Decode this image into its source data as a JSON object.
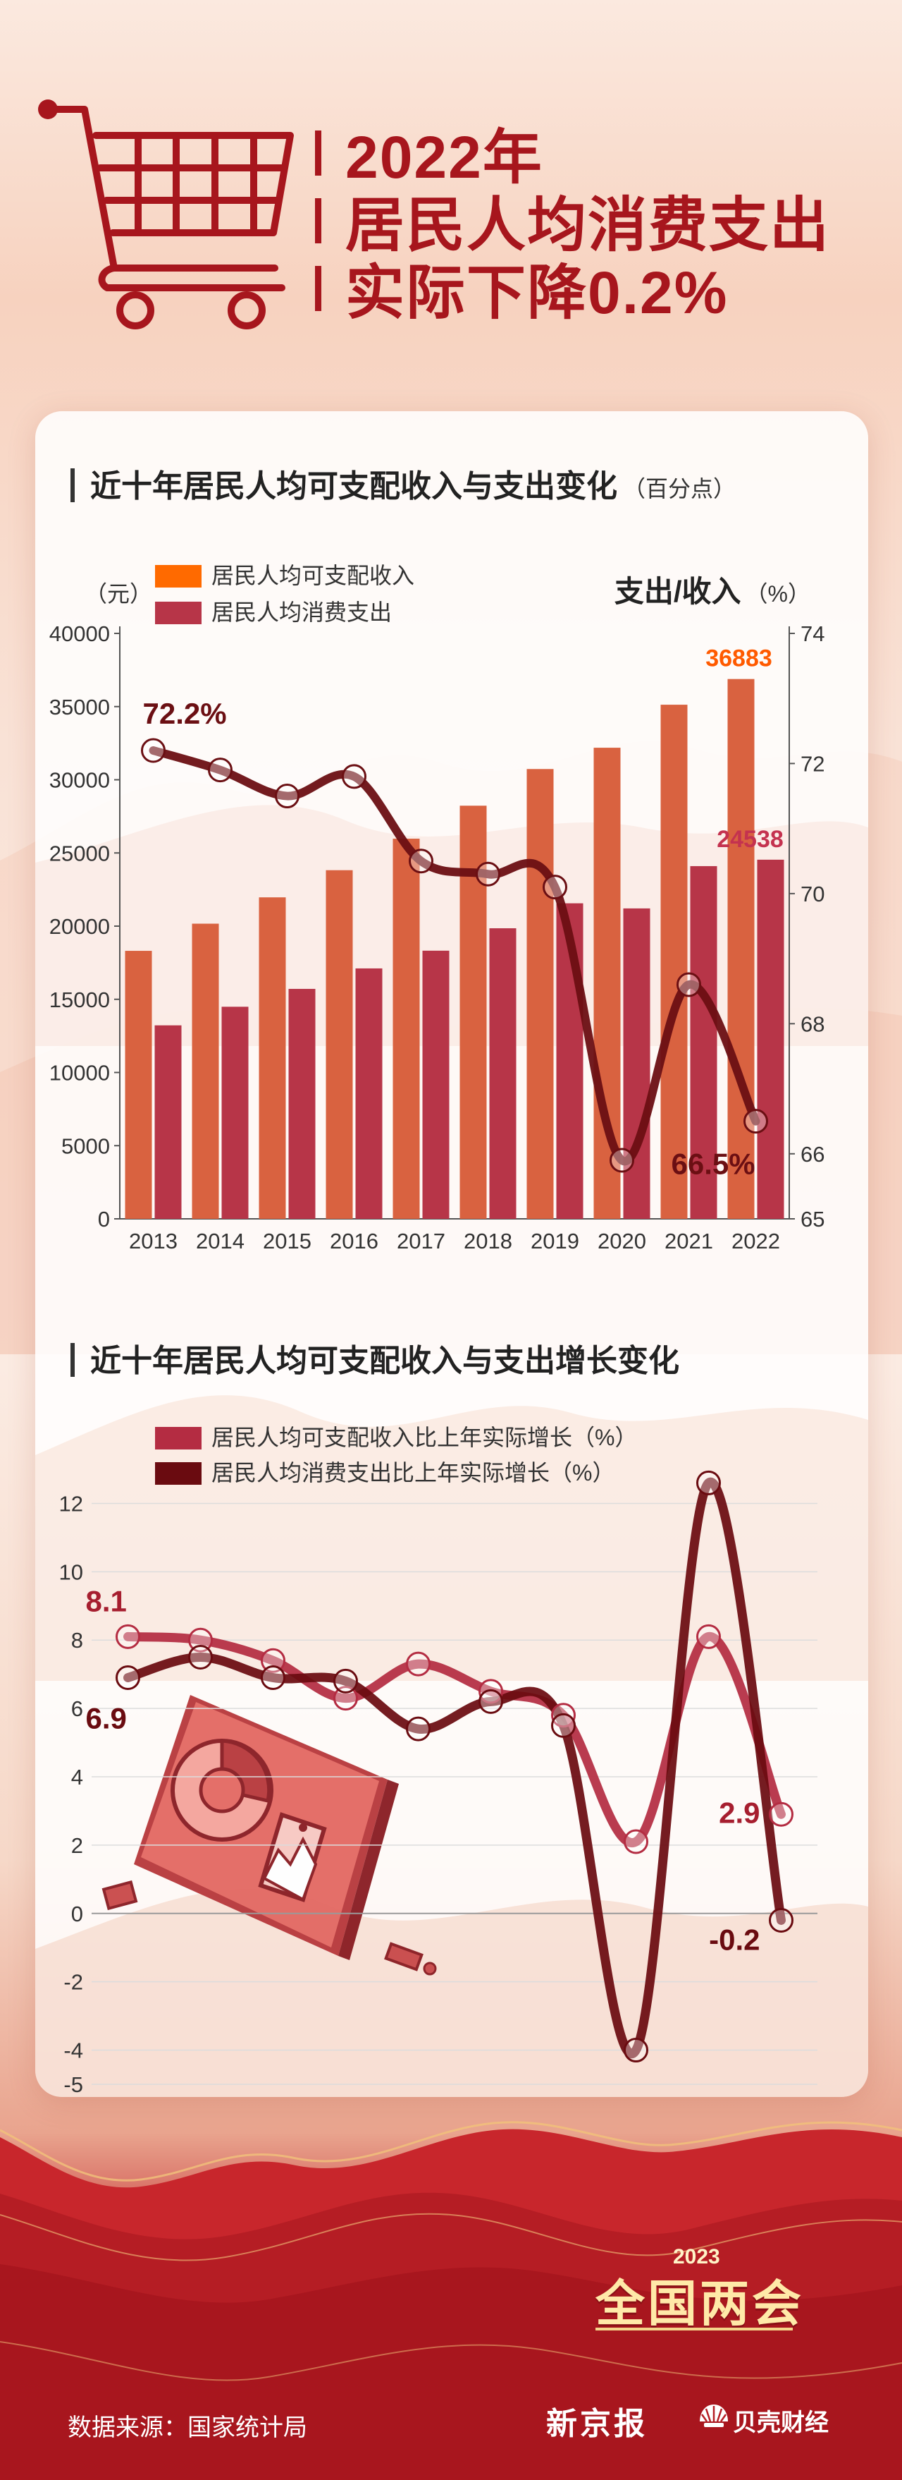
{
  "header": {
    "title_lines": [
      "2022年",
      "居民人均消费支出",
      "实际下降0.2%"
    ]
  },
  "chart1": {
    "section_title": "近十年居民人均可支配收入与支出变化",
    "section_title_unit": "（百分点）",
    "left_unit": "（元）",
    "right_axis_title": "支出/收入",
    "right_unit": "（%）"
  },
  "chart2": {
    "section_title": "近十年居民人均可支配收入与支出增长变化"
  },
  "footer": {
    "source": "数据来源：国家统计局",
    "npc_year": "2023",
    "npc_title": "全国两会",
    "logo_xjb": "新京报",
    "logo_bk": "贝壳财经"
  },
  "colors": {
    "title_red": "#a7161d",
    "income_bar": "#d96240",
    "expense_bar": "#b73548",
    "ratio_line": "#6b0f13",
    "legend_income": "#ff6a00",
    "growth_income_line": "#b42c42",
    "growth_expense_line": "#6a0b10"
  },
  "icons": [
    "shopping-cart-icon",
    "tablet-chart-illustration-icon",
    "shell-logo-icon"
  ],
  "chart_data": [
    {
      "type": "bar",
      "title": "近十年居民人均可支配收入与支出变化（百分点）",
      "categories": [
        "2013",
        "2014",
        "2015",
        "2016",
        "2017",
        "2018",
        "2019",
        "2020",
        "2021",
        "2022"
      ],
      "y_left_label": "（元）",
      "y_left_ticks": [
        "0",
        "5000",
        "10000",
        "15000",
        "20000",
        "25000",
        "30000",
        "35000",
        "40000"
      ],
      "ylim_left": [
        0,
        40000
      ],
      "y_right_label": "支出/收入（%）",
      "y_right_ticks": [
        "65",
        "66",
        "68",
        "70",
        "72",
        "74"
      ],
      "ylim_right": [
        65,
        74
      ],
      "legend_position": "top-left",
      "series": [
        {
          "name": "居民人均可支配收入",
          "kind": "bar",
          "axis": "left",
          "values": [
            18311,
            20167,
            21966,
            23821,
            25974,
            28228,
            30733,
            32189,
            35128,
            36883
          ]
        },
        {
          "name": "居民人均消费支出",
          "kind": "bar",
          "axis": "left",
          "values": [
            13220,
            14491,
            15712,
            17111,
            18322,
            19853,
            21559,
            21210,
            24100,
            24538
          ]
        },
        {
          "kind": "line",
          "axis": "right",
          "values": [
            72.2,
            71.9,
            71.5,
            71.8,
            70.5,
            70.3,
            70.1,
            65.9,
            68.6,
            66.5
          ]
        }
      ],
      "bar_labels": [
        "36883",
        "24538"
      ],
      "line_labels": [
        "72.2%",
        "66.5%"
      ]
    },
    {
      "type": "line",
      "title": "近十年居民人均可支配收入与支出增长变化",
      "categories": [
        "2013",
        "2014",
        "2015",
        "2016",
        "2017",
        "2018",
        "2019",
        "2020",
        "2021",
        "2022"
      ],
      "y_ticks": [
        "-5",
        "-4",
        "-2",
        "0",
        "2",
        "4",
        "6",
        "8",
        "10",
        "12"
      ],
      "ylim": [
        -5,
        13
      ],
      "legend_position": "top-left",
      "series": [
        {
          "name": "居民人均可支配收入比上年实际增长（%）",
          "values": [
            8.1,
            8.0,
            7.4,
            6.3,
            7.3,
            6.5,
            5.8,
            2.1,
            8.1,
            2.9
          ]
        },
        {
          "name": "居民人均消费支出比上年实际增长（%）",
          "values": [
            6.9,
            7.5,
            6.9,
            6.8,
            5.4,
            6.2,
            5.5,
            -4.0,
            12.6,
            -0.2
          ]
        }
      ],
      "point_labels": [
        "8.1",
        "6.9",
        "2.9",
        "-0.2"
      ]
    }
  ]
}
